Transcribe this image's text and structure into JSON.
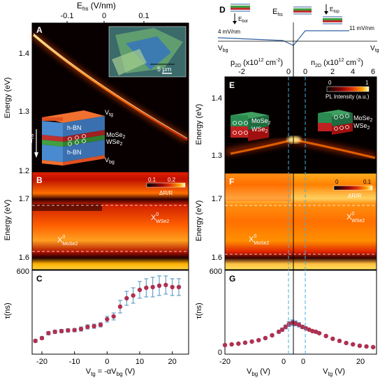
{
  "left": {
    "top_axis_label": "E",
    "top_axis_label_sub": "hs",
    "top_axis_label_unit": " (V/nm)",
    "top_ticks": [
      "-0.1",
      "0",
      "0.1"
    ],
    "panelA": {
      "letter": "A",
      "ylabel": "Energy (eV)",
      "yticks": [
        "1.4",
        "1.3",
        "1.2"
      ],
      "scale_bar": "5 μm",
      "stack_labels": {
        "vtg": "V",
        "vtg_sub": "tg",
        "hbn_top": "h-BN",
        "mose2": "MoSe",
        "mose2_sub": "2",
        "wse2": "WSe",
        "wse2_sub": "2",
        "hbn_bot": "h-BN",
        "vbg": "V",
        "vbg_sub": "bg",
        "ehs": "E",
        "ehs_sub": "hs"
      }
    },
    "panelB": {
      "letter": "B",
      "ylabel": "Energy (eV)",
      "yticks": [
        "1.7",
        "1.6"
      ],
      "colorbar_ticks": [
        "0.1",
        "0.2"
      ],
      "colorbar_label": "ΔR/R",
      "x_wse2": "X",
      "x_wse2_sup": "0",
      "x_wse2_sub": "WSe2",
      "x_mose2": "X",
      "x_mose2_sup": "0",
      "x_mose2_sub": "MoSe2"
    },
    "panelC": {
      "letter": "C",
      "ylabel": "τ(ns)",
      "ytick_top": "600",
      "xticks": [
        "-20",
        "-10",
        "0",
        "10",
        "20"
      ],
      "xlabel": "V",
      "xlabel_sub1": "tg",
      "xlabel_mid": " = -αV",
      "xlabel_sub2": "bg",
      "xlabel_unit": " (V)"
    }
  },
  "right": {
    "panelD": {
      "letter": "D",
      "ehs": "E",
      "ehs_sub": "hs",
      "ebot": "E",
      "ebot_sub": "bot",
      "etop": "E",
      "etop_sub": "top",
      "left_field": "4 mV/nm",
      "right_field": "11 mV/nm",
      "vbg": "V",
      "vbg_sub": "bg",
      "vtg": "V",
      "vtg_sub": "tg"
    },
    "top_axis": {
      "p2d": "p",
      "p2d_sub": "2D",
      "p2d_unit": " (x10",
      "n2d": "n",
      "n2d_sub": "2D",
      "n2d_unit": " (x10",
      "exp": "12",
      "cm": " cm",
      "cm_exp": "-2",
      "close": ")",
      "p_ticks": [
        "-2",
        "0"
      ],
      "n_ticks": [
        "0",
        "2",
        "4",
        "6"
      ]
    },
    "panelE": {
      "letter": "E",
      "ylabel": "Energy (eV)",
      "yticks": [
        "1.4",
        "1.3"
      ],
      "colorbar_ticks": [
        "0",
        "1"
      ],
      "colorbar_label": "PL Intensity (a.u.)",
      "mose2": "MoSe",
      "mose2_sub": "2",
      "wse2": "WSe",
      "wse2_sub": "2"
    },
    "panelF": {
      "letter": "F",
      "ylabel": "Energy (eV)",
      "yticks": [
        "1.7",
        "1.6"
      ],
      "colorbar_ticks": [
        "0",
        "0.1"
      ],
      "colorbar_label": "ΔR/R",
      "x_wse2": "X",
      "x_wse2_sup": "0",
      "x_wse2_sub": "WSe2",
      "x_mose2": "X",
      "x_mose2_sup": "0",
      "x_mose2_sub": "MoSe2"
    },
    "panelG": {
      "letter": "G",
      "ylabel": "τ(ns)",
      "ytick_top": "600",
      "ytick_bottom": "0",
      "xticks": [
        "-20",
        "0",
        "0",
        "20"
      ],
      "xlabel_left": "V",
      "xlabel_left_sub": "bg",
      "xlabel_left_unit": " (V)",
      "xlabel_right": "V",
      "xlabel_right_sub": "tg",
      "xlabel_right_unit": " (V)"
    }
  },
  "chart_data": [
    {
      "type": "scatter",
      "panel": "C",
      "x": [
        -22,
        -20,
        -18,
        -16,
        -14,
        -12,
        -10,
        -8,
        -6,
        -4,
        -2,
        0,
        2,
        4,
        6,
        8,
        10,
        12,
        14,
        16,
        18,
        20,
        22
      ],
      "y": [
        95,
        115,
        150,
        160,
        165,
        170,
        172,
        180,
        195,
        200,
        210,
        250,
        270,
        340,
        400,
        420,
        460,
        475,
        480,
        490,
        495,
        480,
        480
      ],
      "yerr": [
        10,
        10,
        12,
        12,
        12,
        12,
        12,
        15,
        15,
        15,
        15,
        20,
        25,
        45,
        50,
        55,
        60,
        65,
        70,
        70,
        65,
        60,
        60
      ],
      "xlim": [
        -23,
        25
      ],
      "ylim": [
        0,
        600
      ],
      "marker_color": "#b03050",
      "error_color": "#4a90c0"
    },
    {
      "type": "scatter",
      "panel": "G",
      "x": [
        -20,
        -18,
        -16,
        -14,
        -12,
        -10,
        -8,
        -6,
        -4,
        -3,
        -2,
        -1,
        0,
        1,
        2,
        3,
        4,
        5,
        6,
        7,
        8,
        10,
        12,
        14,
        16,
        18,
        20,
        22,
        24
      ],
      "y": [
        65,
        70,
        75,
        82,
        90,
        100,
        115,
        135,
        160,
        175,
        195,
        215,
        225,
        220,
        210,
        195,
        185,
        175,
        165,
        160,
        150,
        130,
        110,
        95,
        80,
        70,
        60,
        55,
        50
      ],
      "yerr": [
        5,
        5,
        5,
        5,
        5,
        6,
        6,
        8,
        10,
        12,
        14,
        18,
        20,
        18,
        16,
        12,
        10,
        8,
        8,
        8,
        6,
        6,
        5,
        5,
        5,
        5,
        5,
        5,
        5
      ],
      "xlim": [
        -20,
        25
      ],
      "ylim": [
        0,
        600
      ],
      "marker_color": "#b03050",
      "error_color": "#4a90c0"
    }
  ]
}
